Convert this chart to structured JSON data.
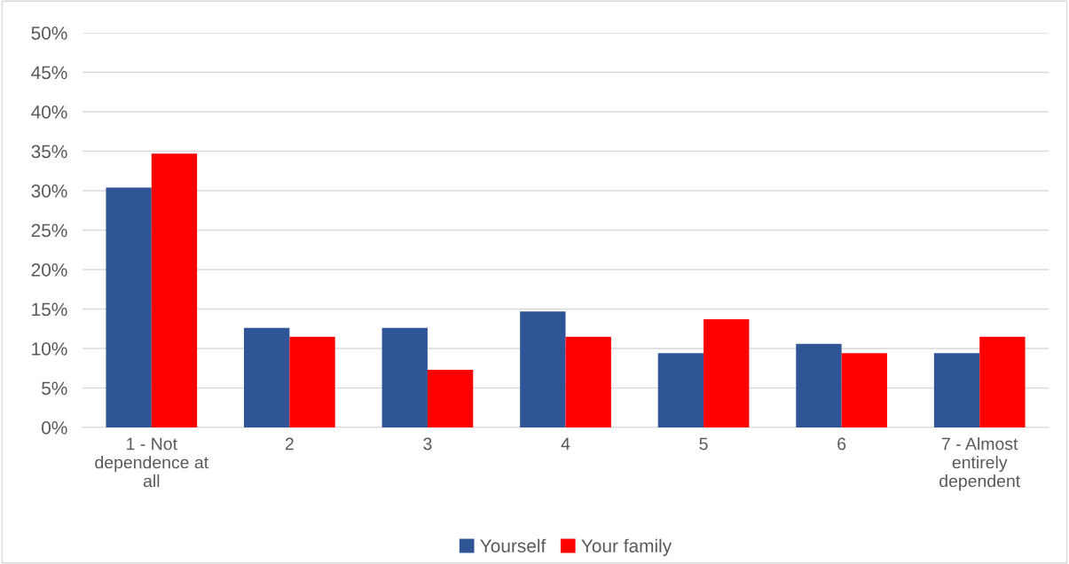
{
  "chart_data": {
    "type": "bar",
    "categories": [
      "1 - Not\ndependence at\nall",
      "2",
      "3",
      "4",
      "5",
      "6",
      "7 - Almost\nentirely\ndependent"
    ],
    "series": [
      {
        "name": "Yourself",
        "color": "#2f5597",
        "values": [
          30.4,
          12.6,
          12.6,
          14.7,
          9.4,
          10.6,
          9.4
        ]
      },
      {
        "name": "Your family",
        "color": "#ff0000",
        "values": [
          34.7,
          11.5,
          7.3,
          11.5,
          13.7,
          9.4,
          11.5
        ]
      }
    ],
    "ylim": [
      0,
      50
    ],
    "yticks": [
      {
        "value": 0,
        "label": "0%"
      },
      {
        "value": 5,
        "label": "5%"
      },
      {
        "value": 10,
        "label": "10%"
      },
      {
        "value": 15,
        "label": "15%"
      },
      {
        "value": 20,
        "label": "20%"
      },
      {
        "value": 25,
        "label": "25%"
      },
      {
        "value": 30,
        "label": "30%"
      },
      {
        "value": 35,
        "label": "35%"
      },
      {
        "value": 40,
        "label": "40%"
      },
      {
        "value": 45,
        "label": "45%"
      },
      {
        "value": 50,
        "label": "50%"
      }
    ],
    "grid": "y",
    "legend": "bottom"
  }
}
